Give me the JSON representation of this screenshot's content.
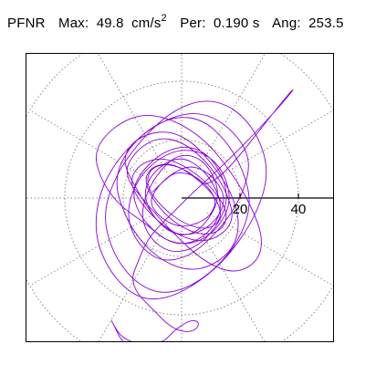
{
  "header": {
    "station": "PFNR",
    "max_label": "Max:",
    "max_value": "49.8",
    "max_unit_base": "cm/s",
    "max_unit_exp": "2",
    "period_label": "Per:",
    "period_value": "0.190 s",
    "angle_label": "Ang:",
    "angle_value": "253.5"
  },
  "chart_data": {
    "type": "scatter",
    "title": "",
    "subtitle": "",
    "xlabel": "",
    "ylabel": "",
    "polar_grid": {
      "rings": [
        20,
        40,
        60
      ],
      "spokes_deg": [
        0,
        30,
        60,
        90,
        120,
        150,
        180,
        210,
        240,
        270,
        300,
        330
      ],
      "ticks": [
        "20",
        "40"
      ]
    },
    "axis": {
      "angle_deg": 0,
      "visible_max": 52
    },
    "xlim": [
      -52,
      52
    ],
    "ylim": [
      -52,
      52
    ],
    "colors": {
      "trace": "#8a00d4",
      "marker": "#159b72",
      "grid": "#888888",
      "axis": "#000000"
    },
    "series": [
      {
        "name": "",
        "x": [
          -10,
          -6,
          -2,
          4,
          9,
          12,
          10,
          5,
          -1,
          -7,
          -11,
          -9,
          -4,
          2,
          7,
          12,
          15,
          13,
          8,
          1,
          -5,
          -10,
          -13,
          -11,
          -6,
          0,
          6,
          11,
          14,
          11,
          5,
          -2,
          -9,
          -15,
          -17,
          -13,
          -6,
          2,
          9,
          14,
          16,
          12,
          5,
          -3,
          -10,
          -14,
          -12,
          -7,
          -1,
          6,
          11,
          13,
          9,
          3,
          -4,
          -10,
          -16,
          -20,
          -18,
          -12,
          -4,
          4,
          11,
          17,
          20,
          18,
          11,
          3,
          -6,
          -14,
          -20,
          -23,
          -19,
          -11,
          -2,
          7,
          15,
          21,
          24,
          20,
          12,
          2,
          -8,
          -17,
          -24,
          -27,
          -22,
          -13,
          -3,
          8,
          18,
          26,
          30,
          26,
          17,
          6,
          -6,
          -16,
          -25,
          -30,
          -28,
          -20,
          -8,
          5,
          16,
          24,
          21,
          13,
          3,
          -7,
          -15,
          -19,
          -16,
          -9,
          0,
          9,
          15,
          17,
          12,
          4,
          -5,
          -12,
          -22,
          -28,
          -30,
          -24,
          -14,
          -3,
          8,
          17,
          24,
          28,
          26,
          18,
          8,
          -2,
          -12,
          -20,
          -16,
          -8,
          1,
          10,
          16,
          18,
          12,
          4,
          -6,
          -14,
          -18,
          -14,
          -6,
          3,
          11,
          16,
          14,
          7,
          -2,
          -9,
          -13,
          -10,
          -3,
          5,
          12,
          14,
          9,
          1,
          -7,
          -12,
          -11,
          -5,
          3,
          10,
          36,
          39,
          35,
          25,
          14,
          4,
          -4,
          -10,
          -13,
          -15,
          -17,
          -16,
          -14,
          -11,
          -8,
          -5,
          -2,
          2,
          5,
          6,
          5,
          3,
          1,
          -2,
          -4,
          -6,
          -10,
          -14,
          -18,
          -21,
          -23,
          -24,
          -24,
          -23,
          -22,
          -21,
          -20,
          -20,
          -19,
          -19
        ],
        "y": [
          2,
          6,
          9,
          8,
          4,
          -1,
          -6,
          -9,
          -10,
          -7,
          -2,
          3,
          8,
          11,
          10,
          6,
          0,
          -6,
          -11,
          -13,
          -11,
          -6,
          1,
          7,
          12,
          14,
          11,
          5,
          -3,
          -10,
          -15,
          -16,
          -12,
          -5,
          3,
          10,
          16,
          18,
          15,
          8,
          -1,
          -10,
          -17,
          -19,
          -15,
          -7,
          2,
          10,
          15,
          14,
          8,
          0,
          -8,
          -13,
          -12,
          -6,
          4,
          12,
          18,
          22,
          23,
          19,
          11,
          2,
          -8,
          -17,
          -23,
          -25,
          -22,
          -15,
          -5,
          6,
          16,
          24,
          28,
          27,
          20,
          10,
          -2,
          -14,
          -24,
          -31,
          -33,
          -28,
          -18,
          -5,
          9,
          21,
          30,
          34,
          31,
          22,
          9,
          -5,
          -19,
          -29,
          -35,
          -34,
          -25,
          -12,
          3,
          16,
          26,
          30,
          25,
          14,
          1,
          -11,
          -20,
          -22,
          -16,
          -6,
          5,
          13,
          17,
          15,
          8,
          -2,
          -11,
          -16,
          -15,
          -9,
          -2,
          7,
          16,
          24,
          29,
          27,
          20,
          9,
          -3,
          -14,
          -22,
          -26,
          -22,
          -13,
          -2,
          8,
          16,
          21,
          19,
          11,
          1,
          -8,
          -14,
          -15,
          -10,
          -2,
          6,
          12,
          14,
          10,
          3,
          -5,
          -11,
          -13,
          -9,
          -2,
          6,
          11,
          12,
          7,
          0,
          -7,
          -11,
          -9,
          -3,
          4,
          10,
          12,
          9,
          2,
          35,
          38,
          33,
          22,
          11,
          2,
          -6,
          -12,
          -17,
          -22,
          -27,
          -31,
          -34,
          -37,
          -40,
          -43,
          -45,
          -46,
          -45,
          -43,
          -42,
          -42,
          -43,
          -45,
          -47,
          -49,
          -50,
          -50,
          -49,
          -47,
          -44,
          -42,
          -42,
          -44,
          -46,
          -48,
          -49,
          -50,
          -51,
          -52
        ]
      }
    ],
    "end_marker": {
      "x": -19,
      "y": -52
    }
  }
}
